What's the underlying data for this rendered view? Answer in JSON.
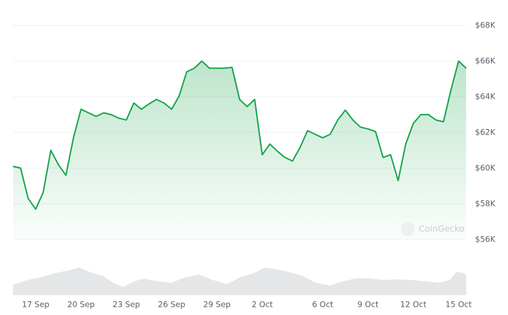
{
  "chart_data": {
    "type": "line",
    "watermark": "CoinGecko",
    "categories": [
      null,
      null,
      null,
      "17 Sep",
      null,
      null,
      null,
      null,
      null,
      "20 Sep",
      null,
      null,
      null,
      null,
      null,
      "23 Sep",
      null,
      null,
      null,
      null,
      null,
      "26 Sep",
      null,
      null,
      null,
      null,
      null,
      "29 Sep",
      null,
      null,
      null,
      null,
      null,
      "2 Oct",
      null,
      null,
      null,
      null,
      null,
      null,
      null,
      "6 Oct",
      null,
      null,
      null,
      null,
      null,
      "9 Oct",
      null,
      null,
      null,
      null,
      null,
      "12 Oct",
      null,
      null,
      null,
      null,
      null,
      "15 Oct",
      null
    ],
    "series": [
      {
        "color": "#16a34a",
        "values": [
          60100,
          60000,
          58300,
          57700,
          58650,
          61000,
          60200,
          59600,
          61700,
          63300,
          63100,
          62900,
          63100,
          63000,
          62800,
          62700,
          63650,
          63300,
          63600,
          63850,
          63650,
          63300,
          64050,
          65400,
          65600,
          66000,
          65600,
          65600,
          65600,
          65650,
          63850,
          63450,
          63850,
          60750,
          61350,
          60950,
          60600,
          60400,
          61150,
          62100,
          61900,
          61700,
          61900,
          62700,
          63250,
          62700,
          62300,
          62200,
          62050,
          60600,
          60750,
          59300,
          61350,
          62500,
          63000,
          63000,
          62700,
          62600,
          64400,
          66000,
          65600
        ]
      }
    ],
    "ylim": [
      56000,
      68000
    ],
    "yticks": [
      {
        "value": 56000,
        "label": "$56K"
      },
      {
        "value": 58000,
        "label": "$58K"
      },
      {
        "value": 60000,
        "label": "$60K"
      },
      {
        "value": 62000,
        "label": "$62K"
      },
      {
        "value": 64000,
        "label": "$64K"
      },
      {
        "value": 66000,
        "label": "$66K"
      },
      {
        "value": 68000,
        "label": "$68K"
      }
    ],
    "grid": true
  }
}
